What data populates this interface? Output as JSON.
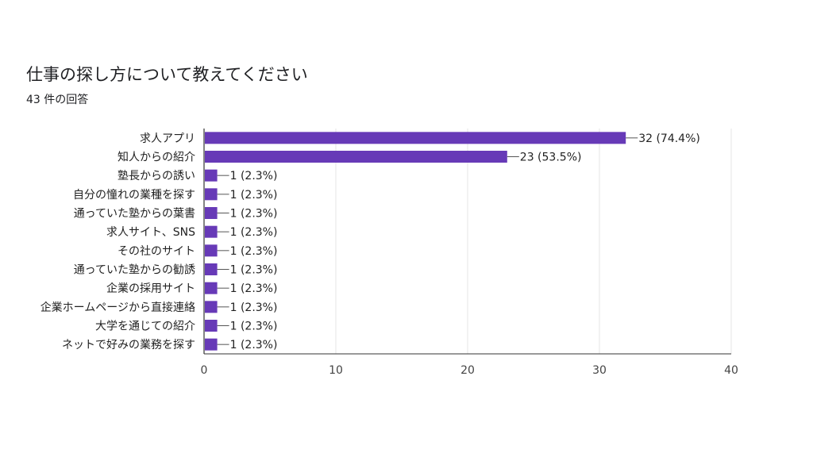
{
  "header": {
    "title": "仕事の探し方について教えてください",
    "response_count": "43 件の回答"
  },
  "chart_data": {
    "type": "bar",
    "orientation": "horizontal",
    "title": "仕事の探し方について教えてください",
    "subtitle": "43 件の回答",
    "categories": [
      "求人アプリ",
      "知人からの紹介",
      "塾長からの誘い",
      "自分の憧れの業種を探す",
      "通っていた塾からの葉書",
      "求人サイト、SNS",
      "その社のサイト",
      "通っていた塾からの勧誘",
      "企業の採用サイト",
      "企業ホームページから直接連絡",
      "大学を通じての紹介",
      "ネットで好みの業務を探す"
    ],
    "values": [
      32,
      23,
      1,
      1,
      1,
      1,
      1,
      1,
      1,
      1,
      1,
      1
    ],
    "value_labels": [
      "32 (74.4%)",
      "23 (53.5%)",
      "1 (2.3%)",
      "1 (2.3%)",
      "1 (2.3%)",
      "1 (2.3%)",
      "1 (2.3%)",
      "1 (2.3%)",
      "1 (2.3%)",
      "1 (2.3%)",
      "1 (2.3%)",
      "1 (2.3%)"
    ],
    "x_ticks": [
      "0",
      "10",
      "20",
      "30",
      "40"
    ],
    "xlim": [
      0,
      40
    ],
    "grid": true,
    "bar_color": "#673ab7"
  }
}
